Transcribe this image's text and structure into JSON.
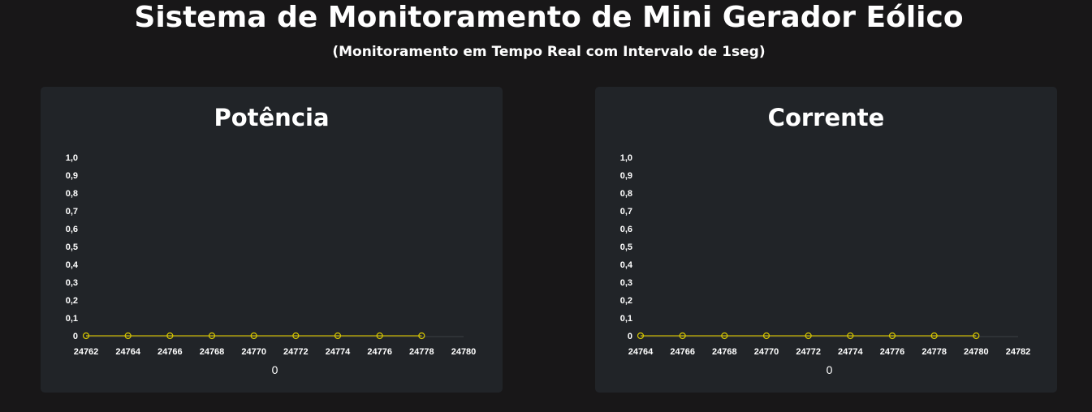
{
  "header": {
    "title": "Sistema de Monitoramento de Mini Gerador Eólico",
    "subtitle": "(Monitoramento em Tempo Real com Intervalo de 1seg)"
  },
  "colors": {
    "background": "#181718",
    "panel": "#212428",
    "series": "#c8b400"
  },
  "chart_data": [
    {
      "type": "line",
      "title": "Potência",
      "xlabel": "0",
      "ylabel": "",
      "ylim": [
        0,
        1.0
      ],
      "xlim": [
        24762,
        24780
      ],
      "yticks": [
        "0",
        "0,1",
        "0,2",
        "0,3",
        "0,4",
        "0,5",
        "0,6",
        "0,7",
        "0,8",
        "0,9",
        "1,0"
      ],
      "xticks": [
        "24762",
        "24764",
        "24766",
        "24768",
        "24770",
        "24772",
        "24774",
        "24776",
        "24778",
        "24780"
      ],
      "x": [
        24762,
        24764,
        24766,
        24768,
        24770,
        24772,
        24774,
        24776,
        24778
      ],
      "series": [
        {
          "values": [
            0,
            0,
            0,
            0,
            0,
            0,
            0,
            0,
            0
          ]
        }
      ],
      "grid": false
    },
    {
      "type": "line",
      "title": "Corrente",
      "xlabel": "0",
      "ylabel": "",
      "ylim": [
        0,
        1.0
      ],
      "xlim": [
        24764,
        24782
      ],
      "yticks": [
        "0",
        "0,1",
        "0,2",
        "0,3",
        "0,4",
        "0,5",
        "0,6",
        "0,7",
        "0,8",
        "0,9",
        "1,0"
      ],
      "xticks": [
        "24764",
        "24766",
        "24768",
        "24770",
        "24772",
        "24774",
        "24776",
        "24778",
        "24780",
        "24782"
      ],
      "x": [
        24764,
        24766,
        24768,
        24770,
        24772,
        24774,
        24776,
        24778,
        24780
      ],
      "series": [
        {
          "values": [
            0,
            0,
            0,
            0,
            0,
            0,
            0,
            0,
            0
          ]
        }
      ],
      "grid": false
    }
  ]
}
